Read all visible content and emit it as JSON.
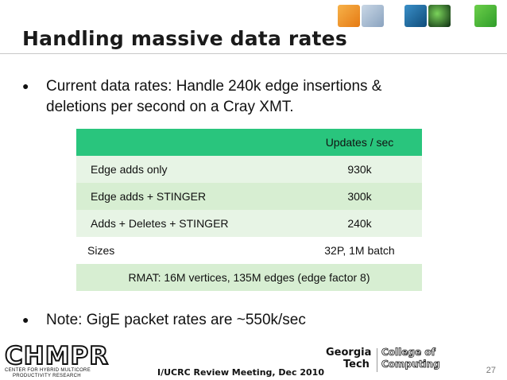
{
  "slide": {
    "title": "Handling massive data rates",
    "bullets": [
      "Current data rates: Handle 240k edge insertions &",
      "deletions per second on a Cray XMT."
    ],
    "note": "Note: GigE packet rates are ~550k/sec",
    "table": {
      "header": [
        "",
        "Updates / sec"
      ],
      "rows": [
        [
          "Edge adds only",
          "930k"
        ],
        [
          "Edge adds + STINGER",
          "300k"
        ],
        [
          "Adds + Deletes + STINGER",
          "240k"
        ]
      ],
      "sizes_row": [
        "Sizes",
        "32P, 1M batch"
      ],
      "footer_row": "RMAT: 16M vertices, 135M edges (edge factor 8)"
    },
    "footer": {
      "meeting": "I/UCRC Review Meeting, Dec 2010",
      "page_number": "27",
      "chmpr_logo": "CHMPR",
      "chmpr_tagline_1": "CENTER FOR HYBRID MULTICORE",
      "chmpr_tagline_2": "PRODUCTIVITY RESEARCH",
      "gt_logo_1": "Georgia",
      "gt_logo_2": "Tech",
      "coc_1": "College of",
      "coc_2": "Computing"
    },
    "colors": {
      "table_header": "#29c57d",
      "table_row_light": "#e7f4e5",
      "table_row_mid": "#d7eed2"
    }
  }
}
